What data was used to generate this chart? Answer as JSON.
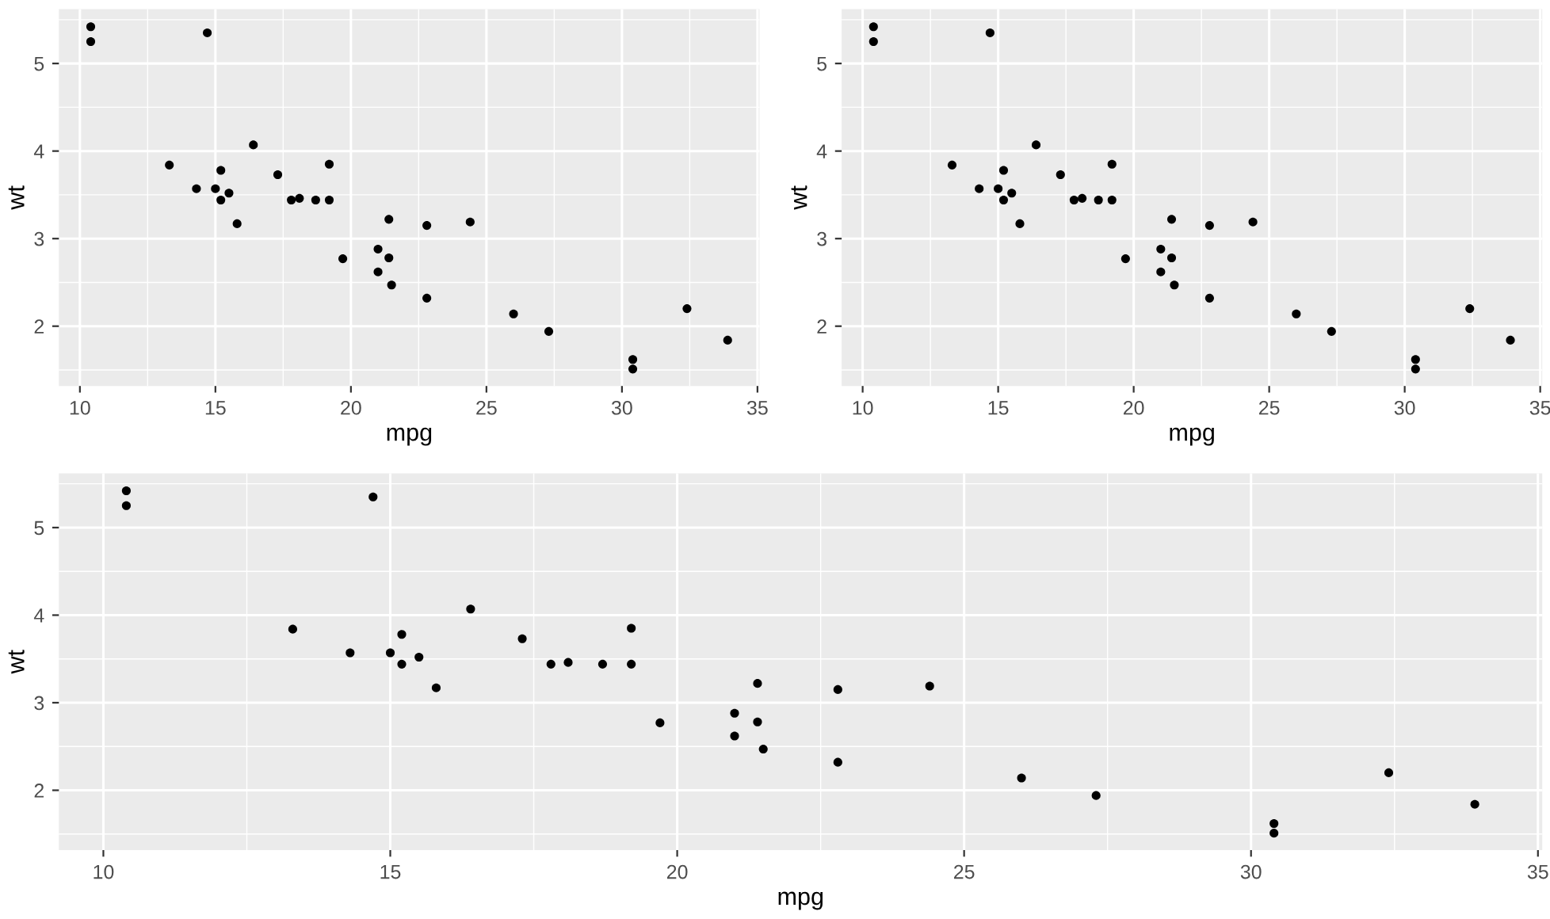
{
  "chart_data": [
    {
      "type": "scatter",
      "xlabel": "mpg",
      "ylabel": "wt",
      "x": [
        21.0,
        21.0,
        22.8,
        21.4,
        18.7,
        18.1,
        14.3,
        24.4,
        22.8,
        19.2,
        17.8,
        16.4,
        17.3,
        15.2,
        10.4,
        10.4,
        14.7,
        32.4,
        30.4,
        33.9,
        21.5,
        15.5,
        15.2,
        13.3,
        19.2,
        27.3,
        26.0,
        30.4,
        15.8,
        19.7,
        15.0,
        21.4
      ],
      "values": [
        2.62,
        2.88,
        2.32,
        3.22,
        3.44,
        3.46,
        3.57,
        3.19,
        3.15,
        3.44,
        3.44,
        4.07,
        3.73,
        3.78,
        5.25,
        5.42,
        5.35,
        2.2,
        1.62,
        1.84,
        2.47,
        3.52,
        3.44,
        3.84,
        3.85,
        1.94,
        2.14,
        1.51,
        3.17,
        2.77,
        3.57,
        2.78
      ],
      "color": "#000000",
      "marker": "circle",
      "xlim": [
        9.225,
        35.075
      ],
      "ylim": [
        1.317,
        5.62
      ],
      "xticks": [
        10,
        15,
        20,
        25,
        30,
        35
      ],
      "yticks": [
        2,
        3,
        4,
        5
      ],
      "grid": true
    },
    {
      "type": "scatter",
      "xlabel": "mpg",
      "ylabel": "wt",
      "x": [
        21.0,
        21.0,
        22.8,
        21.4,
        18.7,
        18.1,
        14.3,
        24.4,
        22.8,
        19.2,
        17.8,
        16.4,
        17.3,
        15.2,
        10.4,
        10.4,
        14.7,
        32.4,
        30.4,
        33.9,
        21.5,
        15.5,
        15.2,
        13.3,
        19.2,
        27.3,
        26.0,
        30.4,
        15.8,
        19.7,
        15.0,
        21.4
      ],
      "values": [
        2.62,
        2.88,
        2.32,
        3.22,
        3.44,
        3.46,
        3.57,
        3.19,
        3.15,
        3.44,
        3.44,
        4.07,
        3.73,
        3.78,
        5.25,
        5.42,
        5.35,
        2.2,
        1.62,
        1.84,
        2.47,
        3.52,
        3.44,
        3.84,
        3.85,
        1.94,
        2.14,
        1.51,
        3.17,
        2.77,
        3.57,
        2.78
      ],
      "color": "#000000",
      "marker": "circle",
      "xlim": [
        9.225,
        35.075
      ],
      "ylim": [
        1.317,
        5.62
      ],
      "xticks": [
        10,
        15,
        20,
        25,
        30,
        35
      ],
      "yticks": [
        2,
        3,
        4,
        5
      ],
      "grid": true
    },
    {
      "type": "scatter",
      "xlabel": "mpg",
      "ylabel": "wt",
      "x": [
        21.0,
        21.0,
        22.8,
        21.4,
        18.7,
        18.1,
        14.3,
        24.4,
        22.8,
        19.2,
        17.8,
        16.4,
        17.3,
        15.2,
        10.4,
        10.4,
        14.7,
        32.4,
        30.4,
        33.9,
        21.5,
        15.5,
        15.2,
        13.3,
        19.2,
        27.3,
        26.0,
        30.4,
        15.8,
        19.7,
        15.0,
        21.4
      ],
      "values": [
        2.62,
        2.88,
        2.32,
        3.22,
        3.44,
        3.46,
        3.57,
        3.19,
        3.15,
        3.44,
        3.44,
        4.07,
        3.73,
        3.78,
        5.25,
        5.42,
        5.35,
        2.2,
        1.62,
        1.84,
        2.47,
        3.52,
        3.44,
        3.84,
        3.85,
        1.94,
        2.14,
        1.51,
        3.17,
        2.77,
        3.57,
        2.78
      ],
      "color": "#000000",
      "marker": "circle",
      "xlim": [
        9.225,
        35.075
      ],
      "ylim": [
        1.317,
        5.62
      ],
      "xticks": [
        10,
        15,
        20,
        25,
        30,
        35
      ],
      "yticks": [
        2,
        3,
        4,
        5
      ],
      "grid": true
    }
  ]
}
